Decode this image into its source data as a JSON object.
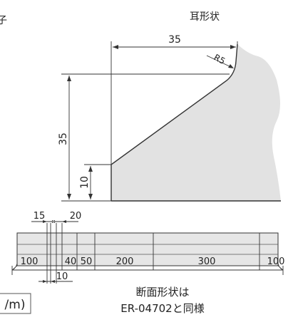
{
  "ear_shape": {
    "title": "耳形状",
    "dim_top": "35",
    "dim_radius": "R5",
    "dim_height": "35",
    "dim_lip": "10"
  },
  "partial_left_glyph": "子",
  "top_dims": {
    "left": "15",
    "right": "20"
  },
  "bottom_dims": [
    "100",
    "40",
    "50",
    "200",
    "300",
    "100"
  ],
  "under_dim": "10",
  "unit_box_text": "/m)",
  "section_note": {
    "line1": "断面形状は",
    "line2": "ER-04702と同様"
  },
  "colors": {
    "profile_fill": "#e2e2e2",
    "line": "#333333",
    "body_fill": "#e6e6e6"
  }
}
